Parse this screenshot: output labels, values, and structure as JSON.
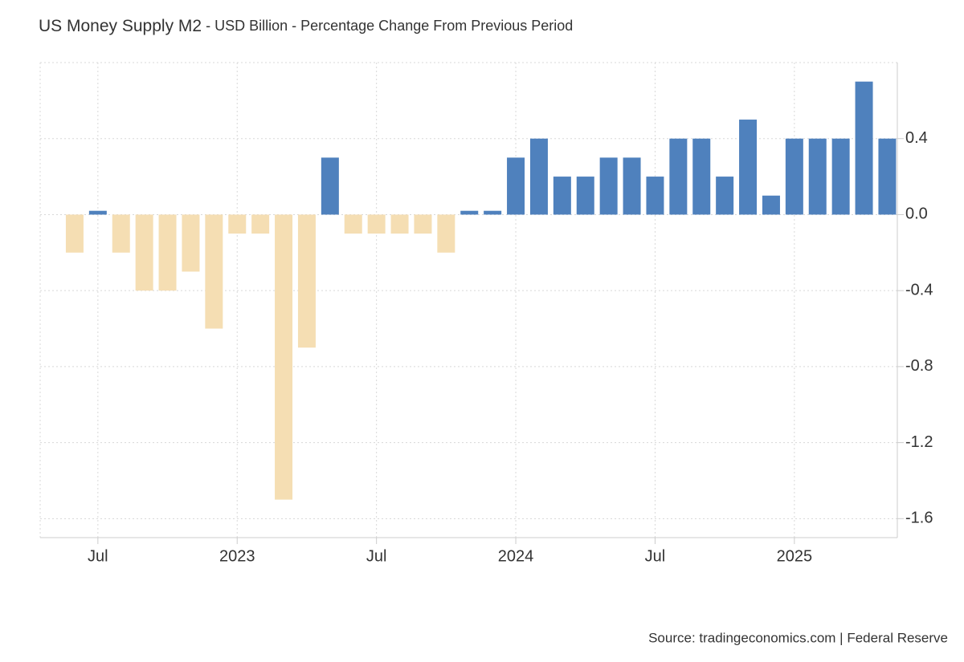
{
  "chart_data": {
    "type": "bar",
    "title": "US Money Supply M2",
    "subtitle": " - USD Billion - Percentage Change From Previous Period",
    "source": "Source: tradingeconomics.com | Federal Reserve",
    "categories": [
      null,
      "Jul",
      null,
      null,
      null,
      null,
      null,
      "2023",
      null,
      null,
      null,
      null,
      null,
      "Jul",
      null,
      null,
      null,
      null,
      null,
      "2024",
      null,
      null,
      null,
      null,
      null,
      "Jul",
      null,
      null,
      null,
      null,
      null,
      "2025",
      null,
      null,
      null,
      null
    ],
    "values": [
      -0.2,
      0.02,
      -0.2,
      -0.4,
      -0.4,
      -0.3,
      -0.6,
      -0.1,
      -0.1,
      -1.5,
      -0.7,
      0.3,
      -0.1,
      -0.1,
      -0.1,
      -0.1,
      -0.2,
      0.02,
      0.02,
      0.3,
      0.4,
      0.2,
      0.2,
      0.3,
      0.3,
      0.2,
      0.4,
      0.4,
      0.2,
      0.5,
      0.1,
      0.4,
      0.4,
      0.4,
      0.7,
      0.4
    ],
    "color": "#4f81bd",
    "negative_color": "#f5deb3",
    "ylim": [
      -1.7,
      0.8
    ],
    "yticks": [
      0.4,
      {
        "value": 0,
        "label": "0.0"
      },
      -0.4,
      -0.8,
      -1.2,
      -1.6
    ],
    "grid": true
  }
}
